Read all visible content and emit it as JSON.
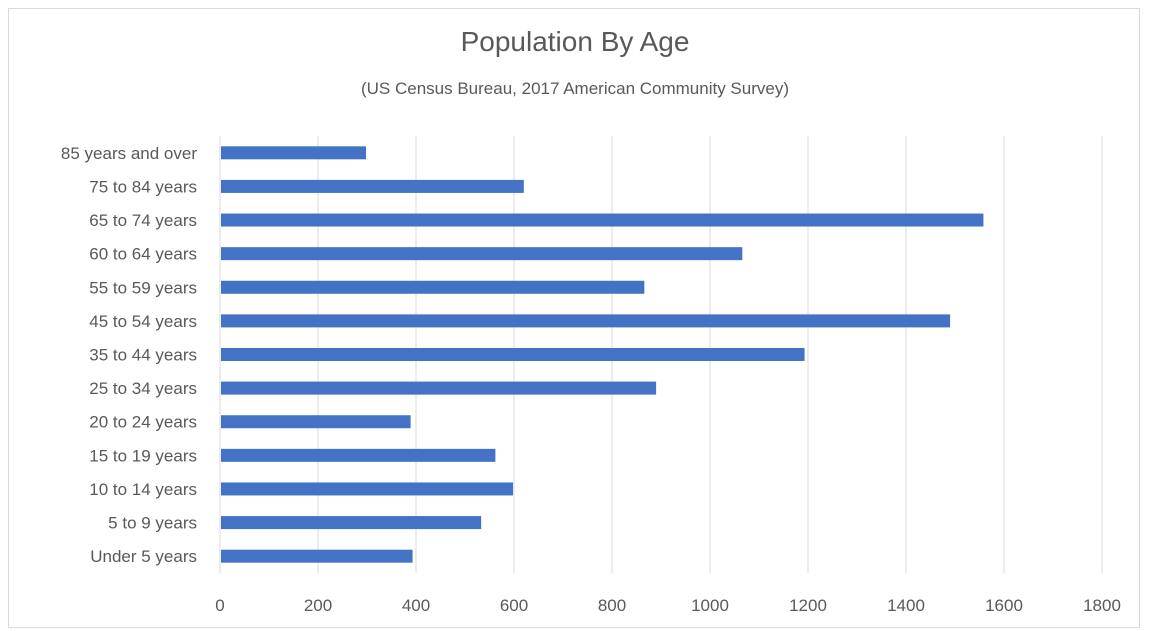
{
  "chart_data": {
    "type": "bar",
    "orientation": "horizontal",
    "title": "Population By Age",
    "subtitle": "(US Census Bureau, 2017 American Community Survey)",
    "categories": [
      "85 years and over",
      "75 to 84 years",
      "65 to 74 years",
      "60 to 64 years",
      "55 to 59 years",
      "45 to 54 years",
      "35 to 44 years",
      "25 to 34 years",
      "20 to 24 years",
      "15 to 19 years",
      "10 to 14 years",
      "5 to 9 years",
      "Under 5 years"
    ],
    "values": [
      298,
      620,
      1558,
      1066,
      866,
      1490,
      1193,
      890,
      389,
      562,
      598,
      533,
      393
    ],
    "xlim": [
      0,
      1800
    ],
    "xticks": [
      0,
      200,
      400,
      600,
      800,
      1000,
      1200,
      1400,
      1600,
      1800
    ],
    "xlabel": "",
    "ylabel": "",
    "grid": "vertical",
    "legend": "none",
    "bar_color": "#4472C4",
    "grid_color": "#d9d9d9",
    "text_color": "#595959"
  }
}
